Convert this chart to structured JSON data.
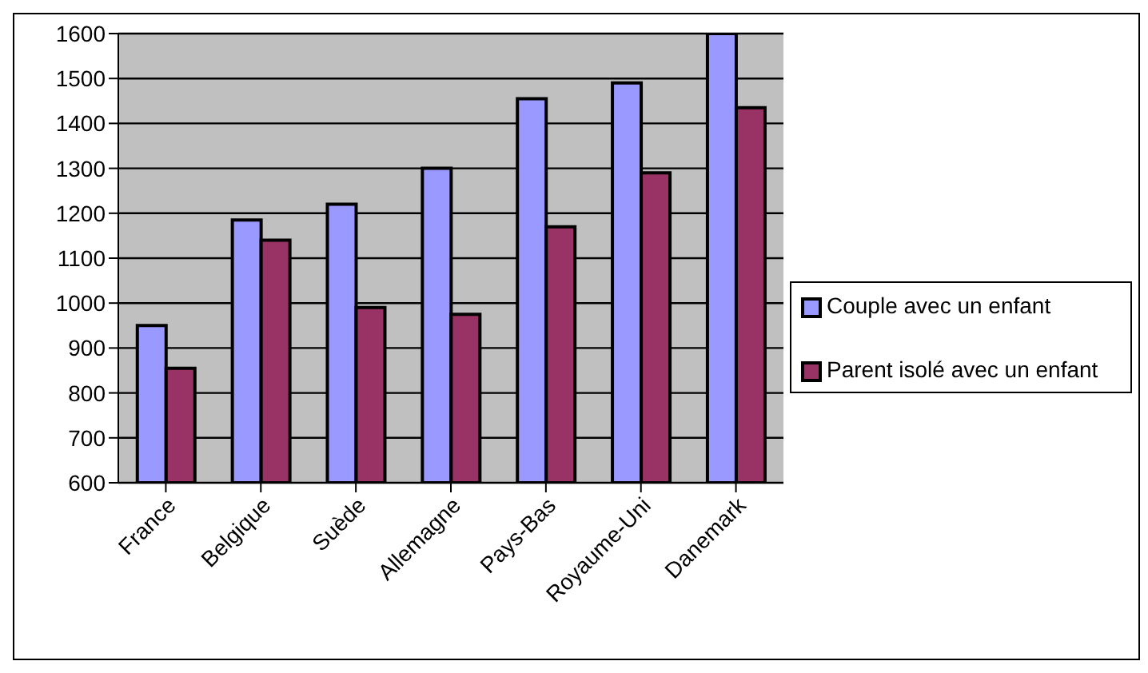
{
  "chart_data": {
    "type": "bar",
    "categories": [
      "France",
      "Belgique",
      "Suède",
      "Allemagne",
      "Pays-Bas",
      "Royaume-Uni",
      "Danemark"
    ],
    "series": [
      {
        "name": "Couple avec un enfant",
        "color": "#9999ff",
        "values": [
          950,
          1185,
          1220,
          1300,
          1455,
          1490,
          1600
        ]
      },
      {
        "name": "Parent isolé avec un enfant",
        "color": "#993366",
        "values": [
          855,
          1140,
          990,
          975,
          1170,
          1290,
          1435
        ]
      }
    ],
    "ylim": [
      600,
      1600
    ],
    "yticks": [
      600,
      700,
      800,
      900,
      1000,
      1100,
      1200,
      1300,
      1400,
      1500,
      1600
    ],
    "grid": "y",
    "legend": "right"
  }
}
